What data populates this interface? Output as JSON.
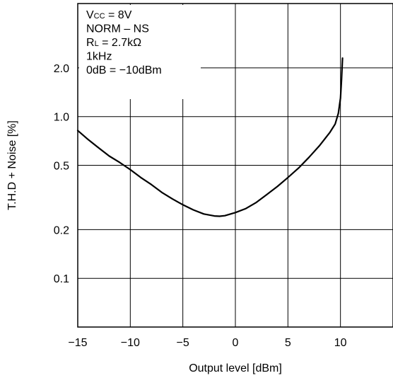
{
  "chart_data": {
    "type": "line",
    "title": "",
    "xlabel": "Output level [dBm]",
    "ylabel": "T.H.D + Noise [%]",
    "xlim": [
      -15,
      15
    ],
    "ylim": [
      0.05,
      5
    ],
    "y_scale": "log",
    "grid": true,
    "x_ticks": [
      -15,
      -10,
      -5,
      0,
      5,
      10
    ],
    "x_tick_labels": [
      "−15",
      "−10",
      "−5",
      "0",
      "5",
      "10"
    ],
    "y_ticks": [
      0.1,
      0.2,
      0.5,
      1.0,
      2.0
    ],
    "y_tick_labels": [
      "0.1",
      "0.2",
      "0.5",
      "1.0",
      "2.0"
    ],
    "annotation": {
      "lines": [
        {
          "main": "V",
          "sub": "CC",
          "rest": " = 8V"
        },
        {
          "main": "NORM – NS",
          "sub": "",
          "rest": ""
        },
        {
          "main": "R",
          "sub": "L",
          "rest": " = 2.7kΩ"
        },
        {
          "main": "1kHz",
          "sub": "",
          "rest": ""
        },
        {
          "main": "0dB = −10dBm",
          "sub": "",
          "rest": ""
        }
      ]
    },
    "series": [
      {
        "x": [
          -15,
          -14,
          -13,
          -12,
          -11,
          -10,
          -9,
          -8,
          -7,
          -6,
          -5,
          -4,
          -3,
          -2,
          -1.5,
          -1,
          0,
          1,
          2,
          3,
          4,
          5,
          6,
          7,
          8,
          9,
          9.5,
          9.8,
          10.0,
          10.1,
          10.2
        ],
        "y": [
          0.82,
          0.72,
          0.64,
          0.57,
          0.52,
          0.47,
          0.42,
          0.38,
          0.34,
          0.31,
          0.285,
          0.265,
          0.25,
          0.243,
          0.242,
          0.244,
          0.255,
          0.27,
          0.295,
          0.33,
          0.37,
          0.42,
          0.48,
          0.56,
          0.66,
          0.8,
          0.9,
          1.05,
          1.3,
          1.7,
          2.3
        ]
      }
    ]
  }
}
